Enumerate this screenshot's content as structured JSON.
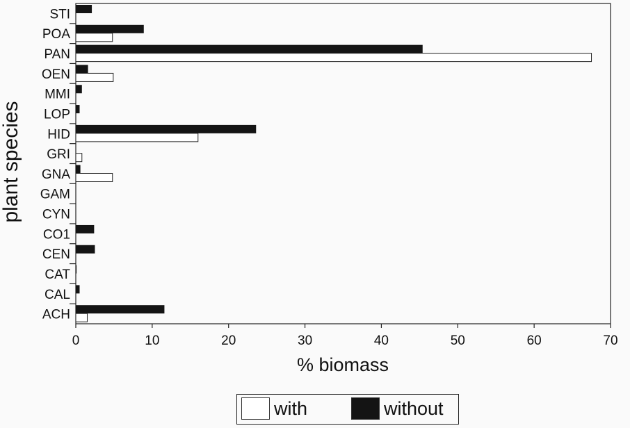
{
  "chart_data": {
    "type": "bar",
    "orientation": "horizontal",
    "xlabel": "% biomass",
    "ylabel": "plant species",
    "xlim": [
      0,
      70
    ],
    "xticks": [
      0,
      10,
      20,
      30,
      40,
      50,
      60,
      70
    ],
    "grid": false,
    "legend_position": "bottom",
    "categories": [
      "STI",
      "POA",
      "PAN",
      "OEN",
      "MMI",
      "LOP",
      "HID",
      "GRI",
      "GNA",
      "GAM",
      "CYN",
      "CO1",
      "CEN",
      "CAT",
      "CAL",
      "ACH"
    ],
    "series": [
      {
        "name": "without",
        "color": "#141414",
        "values": [
          2.1,
          8.9,
          45.4,
          1.6,
          0.8,
          0.5,
          23.6,
          0.0,
          0.6,
          0.0,
          0.0,
          2.4,
          2.5,
          0.1,
          0.5,
          11.6
        ]
      },
      {
        "name": "with",
        "color": "#ffffff",
        "values": [
          0.0,
          4.8,
          67.5,
          4.9,
          0.0,
          0.0,
          16.0,
          0.8,
          4.8,
          0.0,
          0.0,
          0.0,
          0.0,
          0.0,
          0.0,
          1.5
        ]
      }
    ]
  },
  "legend": {
    "with_label": "with",
    "without_label": "without"
  }
}
